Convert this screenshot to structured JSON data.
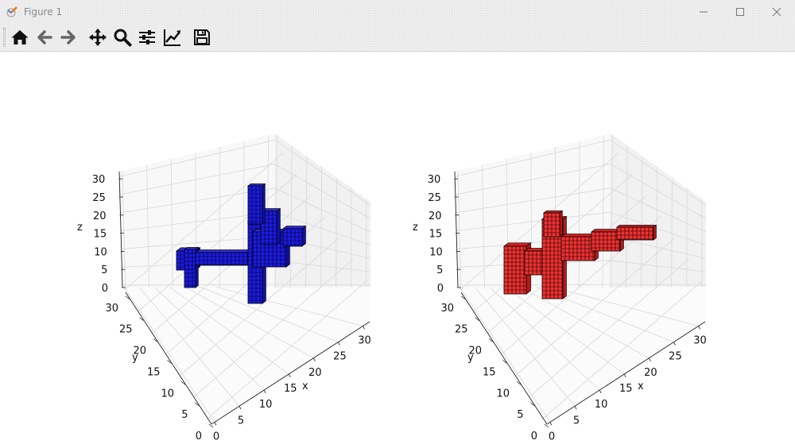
{
  "window": {
    "title": "Figure 1"
  },
  "toolbar": {
    "tools": [
      {
        "name": "home-icon"
      },
      {
        "name": "back-icon"
      },
      {
        "name": "forward-icon"
      },
      {
        "name": "pan-icon"
      },
      {
        "name": "zoom-icon"
      },
      {
        "name": "configure-subplots-icon"
      },
      {
        "name": "edit-axes-icon"
      },
      {
        "name": "save-icon"
      }
    ]
  },
  "colors": {
    "left_voxels": "#1010dd",
    "right_voxels": "#ee2222",
    "edge": "#000000"
  },
  "chart_data": [
    {
      "type": "voxel",
      "xlabel": "x",
      "ylabel": "y",
      "zlabel": "z",
      "xlim": [
        0,
        32
      ],
      "ylim": [
        0,
        32
      ],
      "zlim": [
        0,
        32
      ],
      "xticks": [
        "0",
        "5",
        "10",
        "15",
        "20",
        "25",
        "30"
      ],
      "yticks": [
        "0",
        "5",
        "10",
        "15",
        "20",
        "25",
        "30"
      ],
      "zticks": [
        "0",
        "5",
        "10",
        "15",
        "20",
        "25",
        "30"
      ],
      "grid": true,
      "face_color": "blue"
    },
    {
      "type": "voxel",
      "xlabel": "x",
      "ylabel": "y",
      "zlabel": "z",
      "xlim": [
        0,
        32
      ],
      "ylim": [
        0,
        32
      ],
      "zlim": [
        0,
        32
      ],
      "xticks": [
        "0",
        "5",
        "10",
        "15",
        "20",
        "25",
        "30"
      ],
      "yticks": [
        "0",
        "5",
        "10",
        "15",
        "20",
        "25",
        "30"
      ],
      "zticks": [
        "0",
        "5",
        "10",
        "15",
        "20",
        "25",
        "30"
      ],
      "grid": true,
      "face_color": "red"
    }
  ]
}
